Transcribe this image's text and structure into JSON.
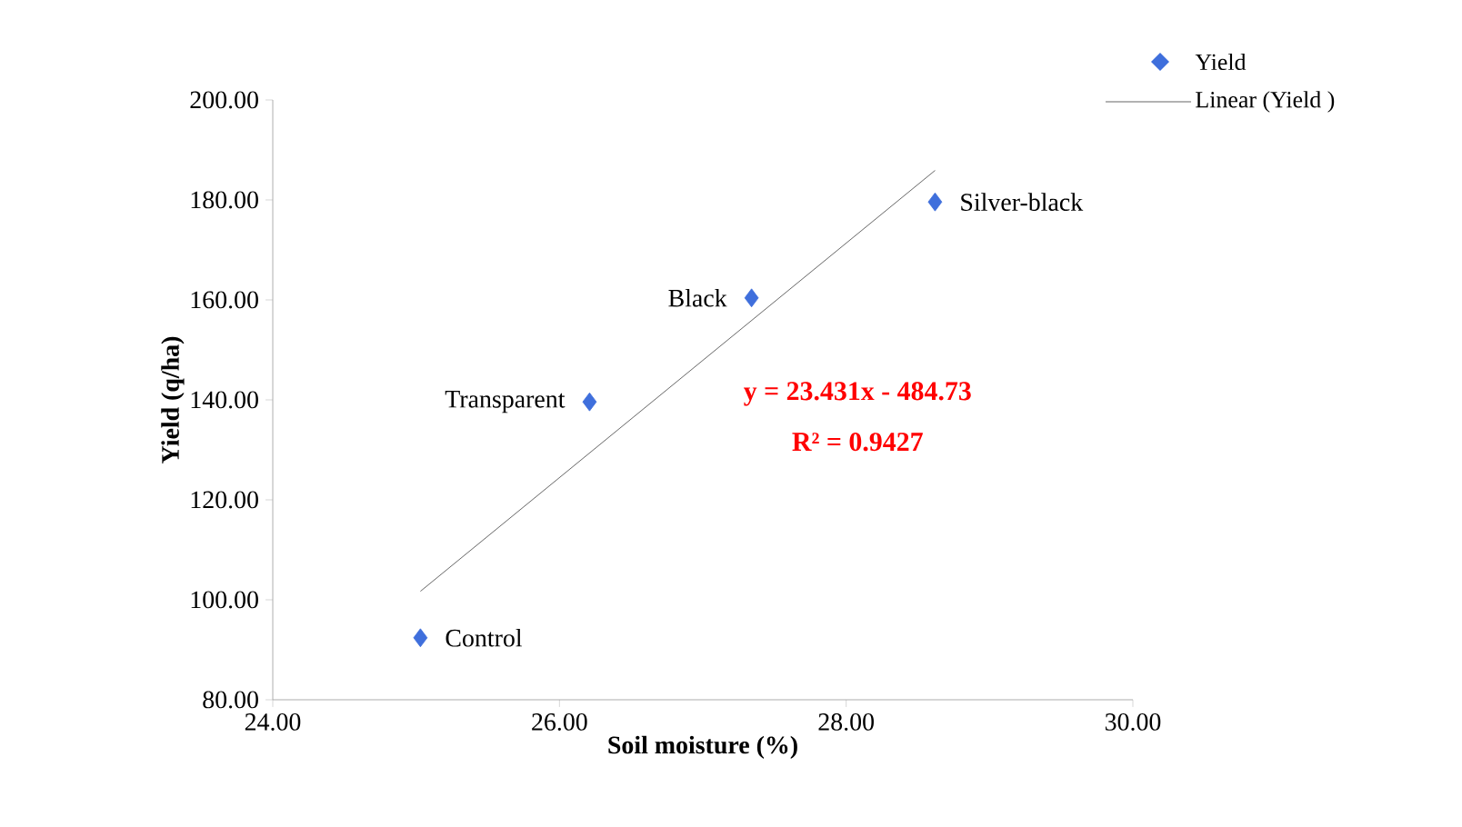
{
  "chart_data": {
    "type": "scatter",
    "xlabel": "Soil moisture (%)",
    "ylabel": "Yield (q/ha)",
    "xlim": [
      24,
      30
    ],
    "ylim": [
      80,
      200
    ],
    "xticks": [
      {
        "value": 24,
        "label": "24.00"
      },
      {
        "value": 26,
        "label": "26.00"
      },
      {
        "value": 28,
        "label": "28.00"
      },
      {
        "value": 30,
        "label": "30.00"
      }
    ],
    "yticks": [
      {
        "value": 80,
        "label": "80.00"
      },
      {
        "value": 100,
        "label": "100.00"
      },
      {
        "value": 120,
        "label": "120.00"
      },
      {
        "value": 140,
        "label": "140.00"
      },
      {
        "value": 160,
        "label": "160.00"
      },
      {
        "value": 180,
        "label": "180.00"
      },
      {
        "value": 200,
        "label": "200.00"
      }
    ],
    "series": [
      {
        "name": "Yield",
        "type": "scatter",
        "color": "#3f6fdc",
        "marker": "diamond",
        "x": [
          25.03,
          26.21,
          27.34,
          28.62
        ],
        "values": [
          92.4,
          139.6,
          160.4,
          179.6
        ]
      },
      {
        "name": "Linear (Yield )",
        "type": "line",
        "color": "#404040",
        "marker": "none",
        "line_style": "solid",
        "x": [
          25.03,
          28.62
        ],
        "values": [
          101.7,
          185.9
        ]
      }
    ],
    "annotations": [
      {
        "text": "Control",
        "x": 25.03,
        "y": 92.4
      },
      {
        "text": "Transparent",
        "x": 26.21,
        "y": 139.6
      },
      {
        "text": "Black",
        "x": 27.34,
        "y": 160.4
      },
      {
        "text": "Silver-black",
        "x": 28.62,
        "y": 179.6
      },
      "y = 23.431x - 484.73",
      "R² = 0.9427"
    ],
    "grid": false,
    "legend": "top right"
  }
}
